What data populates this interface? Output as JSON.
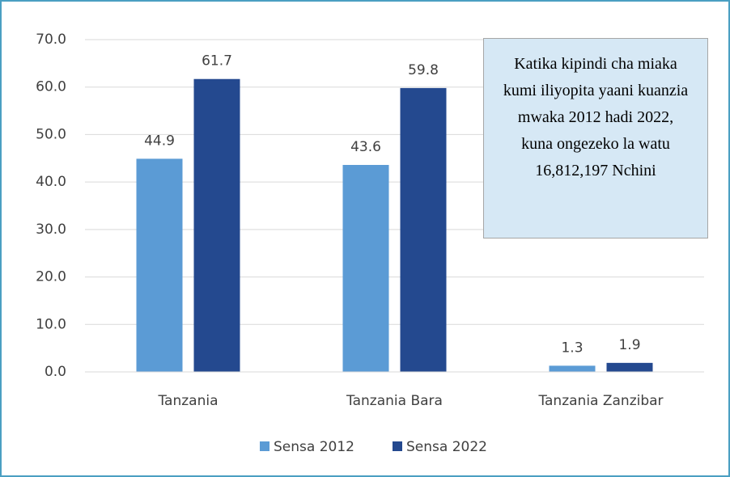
{
  "chart_data": {
    "type": "bar",
    "categories": [
      "Tanzania",
      "Tanzania Bara",
      "Tanzania Zanzibar"
    ],
    "series": [
      {
        "name": "Sensa 2012",
        "color": "#5b9bd5",
        "values": [
          44.9,
          43.6,
          1.3
        ]
      },
      {
        "name": "Sensa 2022",
        "color": "#24498f",
        "values": [
          61.7,
          59.8,
          1.9
        ]
      }
    ],
    "ylim": [
      0,
      70
    ],
    "yticks": [
      {
        "value": 0,
        "label": "0.0"
      },
      {
        "value": 10,
        "label": "10.0"
      },
      {
        "value": 20,
        "label": "20.0"
      },
      {
        "value": 30,
        "label": "30.0"
      },
      {
        "value": 40,
        "label": "40.0"
      },
      {
        "value": 50,
        "label": "50.0"
      },
      {
        "value": 60,
        "label": "60.0"
      },
      {
        "value": 70,
        "label": "70.0"
      }
    ],
    "grid": true,
    "legend": "bottom",
    "annotation": "Katika kipindi cha miaka kumi iliyopita yaani kuanzia mwaka 2012 hadi 2022, kuna ongezeko la watu 16,812,197 Nchini"
  }
}
